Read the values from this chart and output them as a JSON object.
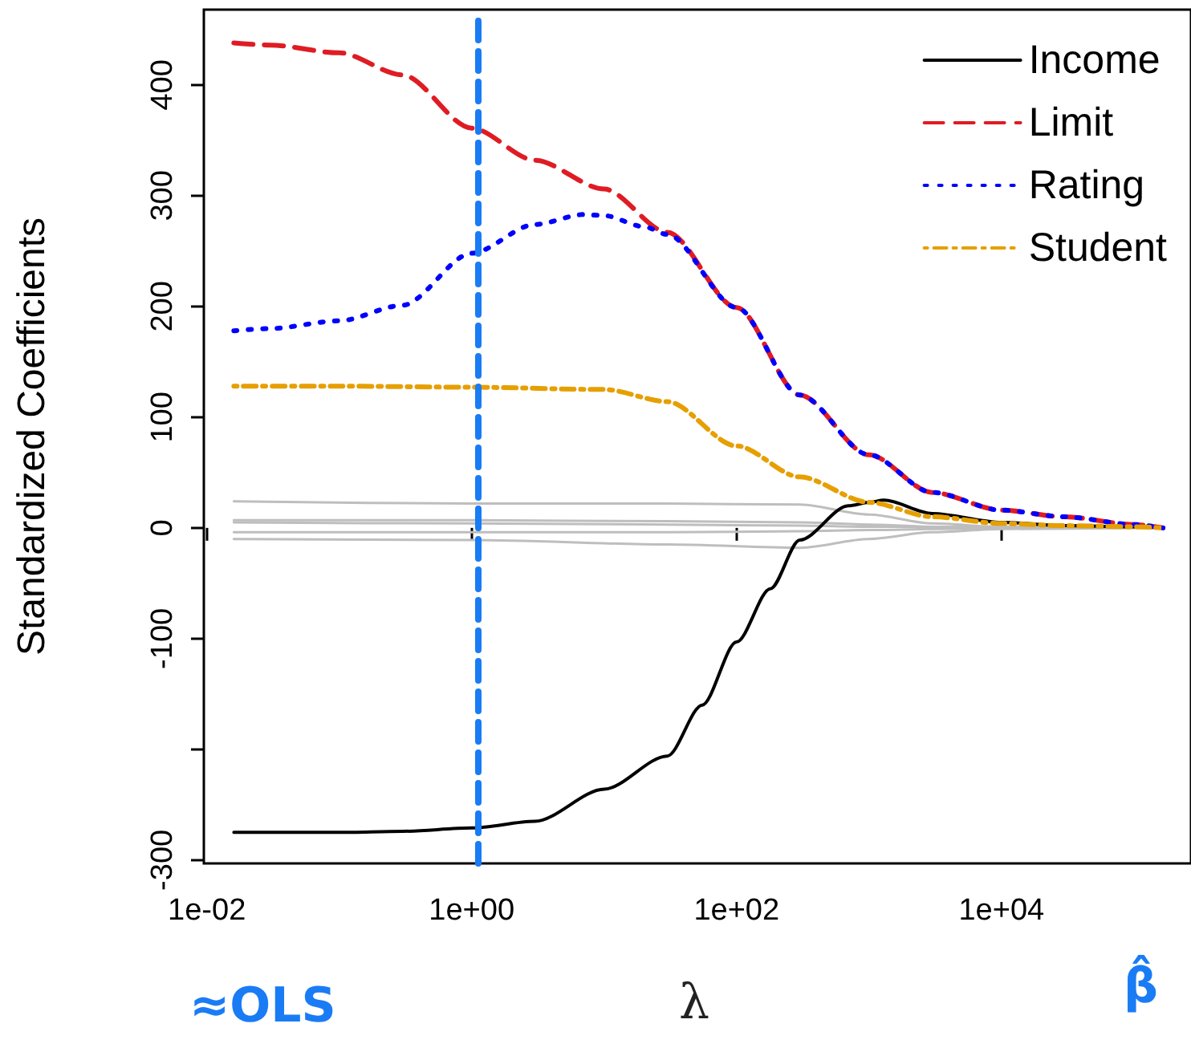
{
  "chart_data": {
    "type": "line",
    "xlabel": "λ",
    "ylabel": "Standardized Coefficients",
    "log": "x",
    "xlim": [
      0.0095,
      270000
    ],
    "ylim": [
      -303,
      468
    ],
    "xticks": [
      {
        "value": 0.01,
        "label": "1e-02"
      },
      {
        "value": 1,
        "label": "1e+00"
      },
      {
        "value": 100,
        "label": "1e+02"
      },
      {
        "value": 10000,
        "label": "1e+04"
      }
    ],
    "yticks": [
      400,
      300,
      200,
      100,
      0,
      -100,
      {
        "value": -200,
        "label": null
      },
      -300
    ],
    "grid": false,
    "legend": "top right",
    "marker": "none",
    "series": [
      {
        "name": "Income",
        "color": "#000000",
        "line_style": "solid",
        "x": [
          0.016,
          0.1,
          0.3,
          1,
          3,
          10,
          30,
          55,
          100,
          180,
          300,
          700,
          1000,
          1300,
          3000,
          10000,
          30000,
          100000,
          166000
        ],
        "values": [
          -275,
          -275,
          -274,
          -271,
          -265,
          -236,
          -206,
          -160,
          -103,
          -55,
          -11,
          20,
          23,
          25,
          13,
          5,
          2,
          1,
          0
        ]
      },
      {
        "name": "Limit",
        "color": "#df1c24",
        "line_style": "dashed",
        "x": [
          0.016,
          0.03,
          0.1,
          0.3,
          1,
          3,
          10,
          30,
          100,
          300,
          1000,
          3000,
          10000,
          30000,
          100000,
          166000
        ],
        "values": [
          438,
          436,
          429,
          409,
          361,
          332,
          306,
          267,
          199,
          120,
          66,
          32,
          16,
          10,
          3,
          0
        ]
      },
      {
        "name": "Rating",
        "color": "#0000ff",
        "line_style": "dotted",
        "x": [
          0.016,
          0.03,
          0.1,
          0.3,
          1,
          3,
          7,
          10,
          20,
          30,
          100,
          300,
          1000,
          3000,
          10000,
          30000,
          100000,
          166000
        ],
        "values": [
          178,
          180,
          187,
          201,
          248,
          274,
          283,
          282,
          272,
          265,
          199,
          120,
          66,
          32,
          16,
          10,
          3,
          0
        ]
      },
      {
        "name": "Student",
        "color": "#e69f00",
        "line_style": "dashdot",
        "x": [
          0.016,
          0.1,
          1,
          10,
          30,
          100,
          300,
          1000,
          3000,
          10000,
          30000,
          100000,
          166000
        ],
        "values": [
          128,
          128,
          127,
          125,
          114,
          74,
          46,
          23,
          10,
          4,
          2,
          1,
          0
        ]
      },
      {
        "color": "#bebebe",
        "line_style": "solid",
        "x": [
          0.016,
          1,
          30,
          300,
          1000,
          3000,
          10000,
          166000
        ],
        "values": [
          24,
          22,
          22,
          21,
          12,
          4,
          1,
          0
        ]
      },
      {
        "color": "#bebebe",
        "line_style": "solid",
        "x": [
          0.016,
          1,
          30,
          300,
          1000,
          3000,
          10000,
          100000
        ],
        "values": [
          7,
          7,
          6,
          5,
          3,
          1,
          1,
          0
        ]
      },
      {
        "color": "#bebebe",
        "line_style": "solid",
        "x": [
          0.016,
          1,
          30,
          300,
          1000,
          3000,
          10000
        ],
        "values": [
          5,
          4,
          3,
          2,
          1,
          1,
          0
        ]
      },
      {
        "color": "#bebebe",
        "line_style": "solid",
        "x": [
          0.016,
          1,
          30,
          300,
          1000,
          3000,
          30000
        ],
        "values": [
          -4,
          -4,
          -4,
          -3,
          -2,
          -1,
          0
        ]
      },
      {
        "color": "#bebebe",
        "line_style": "solid",
        "x": [
          0.016,
          1,
          30,
          300,
          1000,
          3000,
          10000,
          166000
        ],
        "values": [
          -10,
          -11,
          -15,
          -18,
          -10,
          -4,
          -1,
          0
        ]
      }
    ],
    "ref_lines": [
      {
        "axis": "x",
        "value": 1.1,
        "color": "#1a7cf5",
        "line_style": "dashed"
      }
    ],
    "annotations": [
      "≈OLS",
      "β̂"
    ]
  }
}
